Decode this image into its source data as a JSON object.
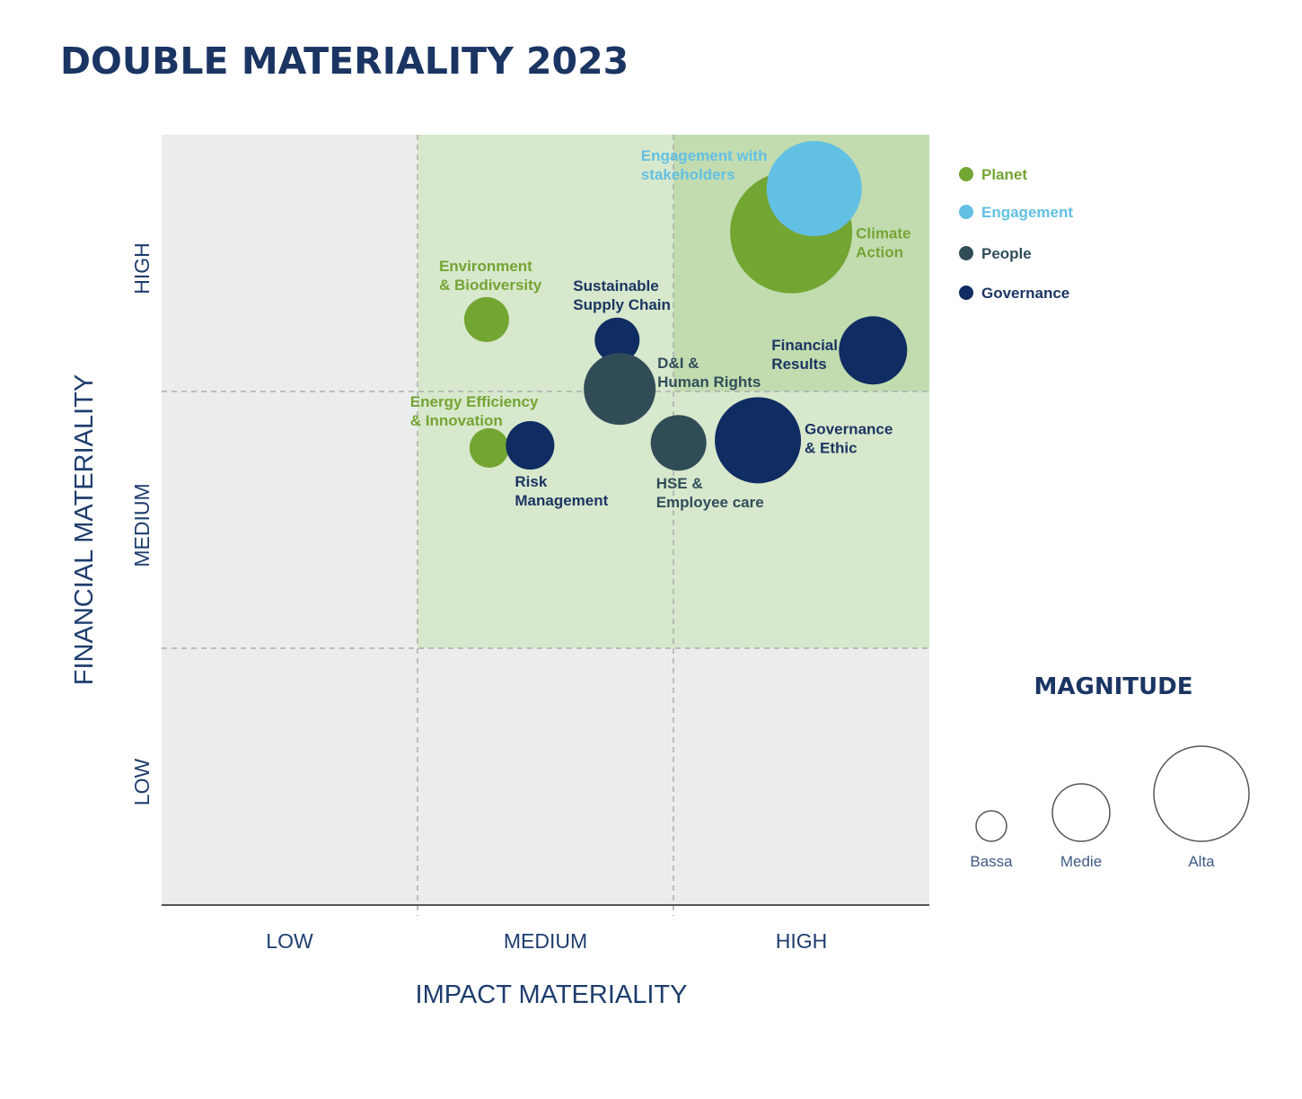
{
  "chart_data": {
    "type": "scatter",
    "title": "DOUBLE MATERIALITY 2023",
    "xlabel": "IMPACT MATERIALITY",
    "ylabel": "FINANCIAL MATERIALITY",
    "x_ticks": [
      "LOW",
      "MEDIUM",
      "HIGH"
    ],
    "y_ticks": [
      "LOW",
      "MEDIUM",
      "HIGH"
    ],
    "xlim": [
      0,
      3
    ],
    "ylim": [
      0,
      3
    ],
    "grid": "dashed quadrant dividers",
    "legend_placement": "right",
    "zones": {
      "low": "#ebeded",
      "medium": "#d8e8cc",
      "high": "#c2dcb0"
    },
    "categories": [
      {
        "name": "Planet",
        "color": "#73a533"
      },
      {
        "name": "Engagement",
        "color": "#62c0e3"
      },
      {
        "name": "People",
        "color": "#304d57"
      },
      {
        "name": "Governance",
        "color": "#0f2d62"
      }
    ],
    "points": [
      {
        "label": [
          "Climate",
          "Action"
        ],
        "category": "Planet",
        "x": 2.46,
        "y": 2.62,
        "magnitude": 6.8
      },
      {
        "label": [
          "Engagement with",
          "stakeholders"
        ],
        "category": "Engagement",
        "x": 2.55,
        "y": 2.79,
        "magnitude": 5.3
      },
      {
        "label": [
          "Environment",
          "& Biodiversity"
        ],
        "category": "Planet",
        "x": 1.27,
        "y": 2.28,
        "magnitude": 2.5
      },
      {
        "label": [
          "Sustainable",
          "Supply Chain"
        ],
        "category": "Governance",
        "x": 1.78,
        "y": 2.2,
        "magnitude": 2.5
      },
      {
        "label": [
          "D&I &",
          "Human Rights"
        ],
        "category": "People",
        "x": 1.79,
        "y": 2.01,
        "magnitude": 4.0
      },
      {
        "label": [
          "Financial",
          "Results"
        ],
        "category": "Governance",
        "x": 2.78,
        "y": 2.16,
        "magnitude": 3.8
      },
      {
        "label": [
          "Energy Efficiency",
          "& Innovation"
        ],
        "category": "Planet",
        "x": 1.28,
        "y": 1.78,
        "magnitude": 2.2
      },
      {
        "label": [
          "Risk",
          "Management"
        ],
        "category": "Governance",
        "x": 1.44,
        "y": 1.79,
        "magnitude": 2.7
      },
      {
        "label": [
          "HSE &",
          "Employee care"
        ],
        "category": "People",
        "x": 2.02,
        "y": 1.8,
        "magnitude": 3.1
      },
      {
        "label": [
          "Governance",
          "& Ethic"
        ],
        "category": "Governance",
        "x": 2.33,
        "y": 1.81,
        "magnitude": 4.8
      }
    ],
    "magnitude_legend": {
      "title": "MAGNITUDE",
      "items": [
        {
          "label": "Bassa",
          "magnitude": 1.7
        },
        {
          "label": "Medie",
          "magnitude": 3.2
        },
        {
          "label": "Alta",
          "magnitude": 5.3
        }
      ]
    }
  }
}
